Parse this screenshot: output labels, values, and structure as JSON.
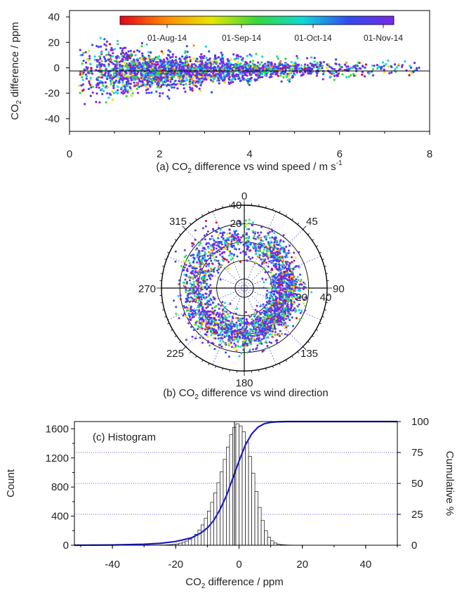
{
  "chart_data": [
    {
      "type": "scatter",
      "xlabel_prefix": "(a) CO",
      "xlabel_sub": "2",
      "xlabel_suffix": " difference vs wind speed / m s",
      "xlabel_sup": "-1",
      "ylabel_prefix": "CO",
      "ylabel_sub": "2",
      "ylabel_suffix": " difference / ppm",
      "xlim": [
        0,
        8
      ],
      "ylim": [
        -50,
        45
      ],
      "x_ticks": [
        0,
        2,
        4,
        6,
        8
      ],
      "y_ticks": [
        40,
        20,
        0,
        -20,
        -40
      ],
      "colorbar": {
        "labels": [
          "01-Aug-14",
          "01-Sep-14",
          "01-Oct-14",
          "01-Nov-14"
        ],
        "colors": [
          "#e8001b",
          "#ff8a00",
          "#e6e600",
          "#36d83a",
          "#10d8d8",
          "#2f4df0",
          "#7a28e8"
        ]
      },
      "point_density": [
        {
          "x": 0.4,
          "count": 60,
          "mean": -2,
          "sd": 11
        },
        {
          "x": 0.8,
          "count": 160,
          "mean": -3,
          "sd": 10
        },
        {
          "x": 1.2,
          "count": 220,
          "mean": -3,
          "sd": 9
        },
        {
          "x": 1.6,
          "count": 240,
          "mean": -3,
          "sd": 8
        },
        {
          "x": 2.0,
          "count": 240,
          "mean": -3,
          "sd": 7
        },
        {
          "x": 2.4,
          "count": 220,
          "mean": -2.5,
          "sd": 6.5
        },
        {
          "x": 2.8,
          "count": 200,
          "mean": -2.5,
          "sd": 6
        },
        {
          "x": 3.2,
          "count": 180,
          "mean": -2,
          "sd": 5.5
        },
        {
          "x": 3.6,
          "count": 160,
          "mean": -2,
          "sd": 5
        },
        {
          "x": 4.0,
          "count": 140,
          "mean": -2,
          "sd": 4.5
        },
        {
          "x": 4.4,
          "count": 110,
          "mean": -1.5,
          "sd": 4
        },
        {
          "x": 4.8,
          "count": 90,
          "mean": -1.5,
          "sd": 3.5
        },
        {
          "x": 5.2,
          "count": 70,
          "mean": -1,
          "sd": 3.5
        },
        {
          "x": 5.6,
          "count": 55,
          "mean": -1,
          "sd": 3
        },
        {
          "x": 6.0,
          "count": 40,
          "mean": -1,
          "sd": 3
        },
        {
          "x": 6.4,
          "count": 30,
          "mean": -0.5,
          "sd": 3
        },
        {
          "x": 6.8,
          "count": 22,
          "mean": -0.5,
          "sd": 3
        },
        {
          "x": 7.2,
          "count": 16,
          "mean": -0.5,
          "sd": 3
        },
        {
          "x": 7.6,
          "count": 12,
          "mean": 0,
          "sd": 3
        }
      ]
    },
    {
      "type": "scatter",
      "subtype": "polar",
      "xlabel_prefix": "(b) CO",
      "xlabel_sub": "2",
      "xlabel_suffix": " difference vs wind  direction",
      "angle_labels": [
        "0",
        "45",
        "90",
        "135",
        "180",
        "225",
        "270",
        "315"
      ],
      "radial_labels_up": [
        "40",
        "20"
      ],
      "radial_labels_right": [
        "20",
        "40"
      ],
      "radial_range": [
        -50,
        40
      ],
      "direction_density": [
        {
          "direction": 0,
          "count": 60,
          "mean": 2,
          "sd": 9
        },
        {
          "direction": 45,
          "count": 90,
          "mean": 0,
          "sd": 9
        },
        {
          "direction": 90,
          "count": 150,
          "mean": -4,
          "sd": 9
        },
        {
          "direction": 135,
          "count": 170,
          "mean": -3,
          "sd": 8
        },
        {
          "direction": 180,
          "count": 120,
          "mean": 0,
          "sd": 9
        },
        {
          "direction": 225,
          "count": 110,
          "mean": 3,
          "sd": 10
        },
        {
          "direction": 270,
          "count": 90,
          "mean": 4,
          "sd": 10
        },
        {
          "direction": 315,
          "count": 70,
          "mean": 4,
          "sd": 10
        }
      ]
    },
    {
      "type": "bar",
      "subtype": "histogram",
      "annotation": "(c) Histogram",
      "xlabel_prefix": "CO",
      "xlabel_sub": "2",
      "xlabel_suffix": " difference / ppm",
      "ylabel": "Count",
      "ylabel_right": "Cumulative %",
      "xlim": [
        -52,
        50
      ],
      "ylim": [
        0,
        1700
      ],
      "ylim_right": [
        0,
        100
      ],
      "x_ticks": [
        -40,
        -20,
        0,
        20,
        40
      ],
      "y_ticks": [
        0,
        400,
        800,
        1200,
        1600
      ],
      "y_ticks_right": [
        0,
        25,
        50,
        75,
        100
      ],
      "bin_width": 1,
      "bins_start": [
        -25,
        -24,
        -23,
        -22,
        -21,
        -20,
        -19,
        -18,
        -17,
        -16,
        -15,
        -14,
        -13,
        -12,
        -11,
        -10,
        -9,
        -8,
        -7,
        -6,
        -5,
        -4,
        -3,
        -2,
        -1,
        0,
        1,
        2,
        3,
        4,
        5,
        6,
        7,
        8,
        9,
        10,
        11,
        12,
        13,
        14,
        15,
        16,
        17
      ],
      "counts": [
        3,
        4,
        6,
        8,
        12,
        18,
        28,
        40,
        58,
        80,
        110,
        150,
        210,
        280,
        370,
        470,
        590,
        720,
        860,
        1010,
        1180,
        1350,
        1520,
        1620,
        1670,
        1640,
        1560,
        1420,
        1220,
        990,
        740,
        520,
        340,
        200,
        110,
        60,
        30,
        15,
        8,
        5,
        3,
        2,
        1
      ],
      "cumulative_x": [
        -52,
        -40,
        -30,
        -25,
        -20,
        -15,
        -12,
        -10,
        -8,
        -6,
        -4,
        -2,
        0,
        2,
        4,
        6,
        8,
        10,
        12,
        15,
        20,
        50
      ],
      "cumulative_pct": [
        0,
        0.2,
        0.8,
        1.5,
        3,
        6,
        10,
        14,
        20,
        29,
        40,
        54,
        68,
        81,
        90,
        95.5,
        98.3,
        99.4,
        99.8,
        100,
        100,
        100
      ],
      "colors": {
        "cumulative_line": "#1c1cc8",
        "bars": "#ffffff",
        "bar_edge": "#111111",
        "gridline": "#2a2ad0"
      }
    }
  ]
}
